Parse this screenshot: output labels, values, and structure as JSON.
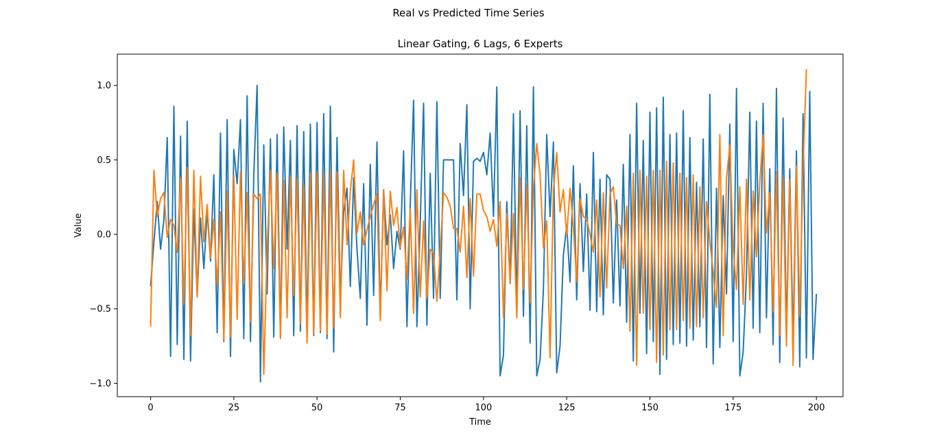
{
  "figure": {
    "suptitle": "Real vs Predicted Time Series"
  },
  "chart_data": {
    "type": "line",
    "title": "Linear Gating, 6 Lags, 6 Experts",
    "xlabel": "Time",
    "ylabel": "Value",
    "xlim": [
      -10,
      208
    ],
    "ylim": [
      -1.09,
      1.21
    ],
    "xticks": [
      0,
      25,
      50,
      75,
      100,
      125,
      150,
      175,
      200
    ],
    "xtick_labels": [
      "0",
      "25",
      "50",
      "75",
      "100",
      "125",
      "150",
      "175",
      "200"
    ],
    "yticks": [
      -1.0,
      -0.5,
      0.0,
      0.5,
      1.0
    ],
    "ytick_labels": [
      "−1.0",
      "−0.5",
      "0.0",
      "0.5",
      "1.0"
    ],
    "grid": false,
    "colors": {
      "real": "#1f77b4",
      "predicted": "#ff7f0e"
    },
    "x_start": 0,
    "series": [
      {
        "values": [
          -0.35,
          -0.05,
          0.22,
          -0.1,
          0.1,
          0.65,
          -0.82,
          0.86,
          -0.74,
          0.66,
          -0.84,
          0.76,
          -0.85,
          0.17,
          -0.42,
          0.11,
          -0.23,
          0.16,
          -0.18,
          0.4,
          -0.66,
          0.68,
          -0.72,
          0.77,
          -0.82,
          0.57,
          0.34,
          0.77,
          -0.7,
          0.93,
          -0.72,
          0.4,
          1.0,
          -0.99,
          0.6,
          -0.4,
          0.64,
          -0.69,
          0.67,
          -0.69,
          0.72,
          -0.1,
          0.63,
          -0.68,
          0.73,
          -0.65,
          0.69,
          -0.67,
          0.74,
          -0.68,
          0.75,
          -0.66,
          0.81,
          -0.7,
          0.86,
          -0.79,
          0.65,
          -0.45,
          0.15,
          0.31,
          -0.35,
          0.38,
          -0.1,
          -0.43,
          0.34,
          -0.61,
          0.47,
          -0.41,
          0.62,
          -0.55,
          0.3,
          -0.07,
          0.13,
          -0.23,
          0.02,
          -0.1,
          0.56,
          -0.62,
          0.2,
          0.9,
          -0.62,
          0.08,
          0.88,
          -0.61,
          0.41,
          -0.43,
          0.89,
          -0.43,
          0.5,
          0.5,
          0.5,
          0.5,
          -0.44,
          0.61,
          0.26,
          0.87,
          -0.5,
          0.49,
          0.51,
          0.49,
          0.55,
          0.4,
          0.68,
          0.12,
          0.99,
          -0.95,
          -0.81,
          0.22,
          -0.33,
          0.81,
          -0.52,
          0.83,
          -0.55,
          0.73,
          -0.73,
          0.99,
          -0.95,
          -0.84,
          -0.37,
          0.67,
          0.12,
          0.62,
          -0.93,
          -0.75,
          -0.14,
          0.06,
          -0.32,
          0.46,
          -0.44,
          0.34,
          -0.25,
          0.27,
          -0.51,
          0.55,
          -0.52,
          0.37,
          -0.54,
          0.4,
          0.37,
          -0.46,
          0.23,
          -0.48,
          0.47,
          -0.59,
          0.67,
          -0.85,
          0.88,
          -0.53,
          0.63,
          -0.8,
          0.82,
          -0.72,
          0.85,
          -0.94,
          0.92,
          -0.84,
          0.67,
          -0.74,
          0.68,
          -0.73,
          0.83,
          -0.75,
          0.65,
          -0.71,
          0.35,
          -0.62,
          0.64,
          -0.76,
          0.94,
          -0.87,
          0.31,
          -0.76,
          0.26,
          -0.4,
          0.74,
          -0.72,
          0.98,
          -0.95,
          -0.79,
          -0.27,
          0.82,
          -0.63,
          0.76,
          -0.66,
          0.88,
          -0.56,
          0.44,
          -0.74,
          0.98,
          -0.86,
          0.78,
          -0.67,
          0.44,
          -0.73,
          0.56,
          -0.89,
          0.81,
          -0.83,
          0.96,
          -0.84,
          -0.4
        ]
      },
      {
        "values": [
          -0.62,
          0.43,
          0.12,
          0.24,
          0.28,
          -0.02,
          0.1,
          0.06,
          -0.12,
          0.38,
          -0.47,
          0.45,
          -0.68,
          0.43,
          -0.42,
          0.39,
          -0.05,
          0.2,
          -0.16,
          0.1,
          -0.34,
          0.15,
          -0.71,
          0.29,
          -0.69,
          0.4,
          -0.57,
          0.42,
          -0.33,
          0.28,
          -0.59,
          0.27,
          0.24,
          0.27,
          -0.94,
          -0.1,
          0.43,
          -0.23,
          0.41,
          -0.7,
          0.36,
          -0.56,
          0.39,
          -0.41,
          0.37,
          -0.6,
          0.33,
          -0.73,
          0.41,
          -0.67,
          0.42,
          -0.65,
          0.4,
          -0.67,
          0.42,
          -0.63,
          0.42,
          -0.56,
          0.43,
          -0.07,
          0.29,
          0.5,
          0.01,
          0.15,
          -0.07,
          0.03,
          0.12,
          0.2,
          0.27,
          -0.58,
          0.3,
          -0.38,
          0.29,
          0.06,
          0.18,
          -0.09,
          0.05,
          -0.3,
          0.17,
          -0.53,
          0.3,
          -0.42,
          0.09,
          -0.43,
          -0.1,
          -0.13,
          -0.45,
          -0.11,
          0.28,
          0.25,
          0.19,
          0.04,
          0.04,
          -0.12,
          0.19,
          -0.29,
          0.24,
          -0.28,
          0.27,
          0.27,
          0.16,
          0.12,
          0.02,
          0.1,
          -0.08,
          0.22,
          -0.56,
          0.14,
          -0.33,
          0.14,
          -0.56,
          0.38,
          -0.37,
          0.33,
          -0.46,
          0.31,
          0.61,
          0.4,
          -0.09,
          0.09,
          -0.83,
          0.3,
          0.55,
          0.15,
          0.3,
          -0.01,
          0.31,
          0.05,
          -0.32,
          0.24,
          0.12,
          0.1,
          0.0,
          -0.12,
          0.23,
          -0.42,
          0.28,
          -0.36,
          0.27,
          0.32,
          0.07,
          0.06,
          -0.23,
          0.19,
          -0.65,
          0.41,
          -0.88,
          0.43,
          -0.53,
          0.39,
          -0.64,
          0.43,
          -0.86,
          0.43,
          -0.81,
          0.49,
          -0.64,
          0.48,
          -0.64,
          0.41,
          -0.58,
          0.38,
          -0.63,
          0.4,
          -0.62,
          0.32,
          -0.56,
          0.22,
          -0.05,
          -0.25,
          -0.49,
          0.67,
          -0.68,
          0.38,
          0.6,
          -0.1,
          -0.37,
          0.32,
          -0.47,
          0.37,
          -0.44,
          0.29,
          -0.15,
          0.35,
          0.67,
          0.01,
          0.28,
          -0.52,
          0.42,
          -0.68,
          0.38,
          -0.75,
          0.37,
          -0.88,
          0.46,
          -0.55,
          0.45,
          1.11
        ]
      }
    ]
  }
}
